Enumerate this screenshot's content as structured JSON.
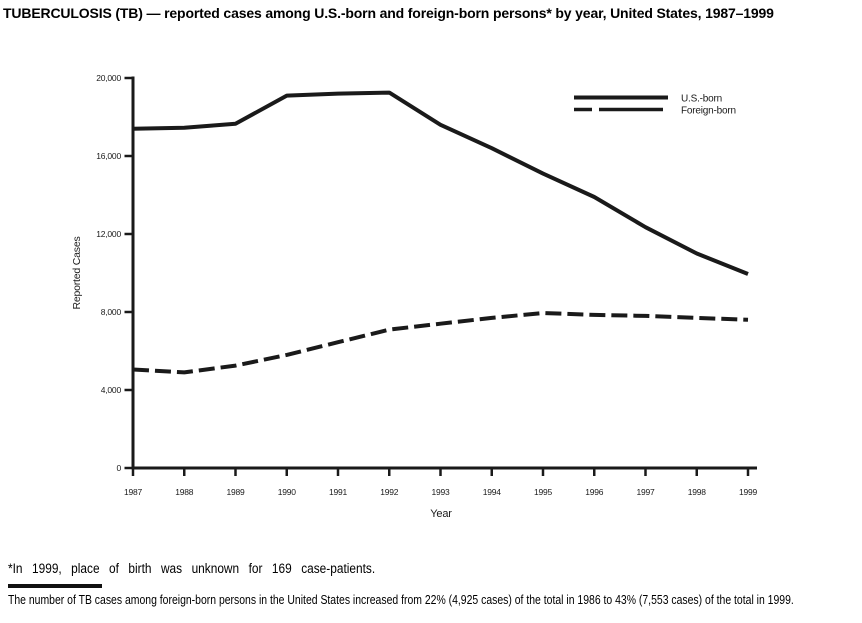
{
  "title": "TUBERCULOSIS (TB) — reported cases among U.S.-born and foreign-born persons* by year, United States, 1987–1999",
  "chart_data": {
    "type": "line",
    "x": [
      1987,
      1988,
      1989,
      1990,
      1991,
      1992,
      1993,
      1994,
      1995,
      1996,
      1997,
      1998,
      1999
    ],
    "series": [
      {
        "name": "U.S.-born",
        "style": "solid",
        "values": [
          17400,
          17450,
          17650,
          19100,
          19200,
          19250,
          17600,
          16400,
          15100,
          13900,
          12350,
          11000,
          9950
        ]
      },
      {
        "name": "Foreign-born",
        "style": "dashed",
        "values": [
          5050,
          4900,
          5250,
          5800,
          6450,
          7100,
          7400,
          7700,
          7950,
          7850,
          7800,
          7700,
          7600
        ]
      }
    ],
    "xlabel": "Year",
    "ylabel": "Reported Cases",
    "ylim": [
      0,
      20000
    ],
    "yticks": [
      0,
      4000,
      8000,
      12000,
      16000,
      20000
    ],
    "ytick_labels": [
      "0",
      "4,000",
      "8,000",
      "12,000",
      "16,000",
      "20,000"
    ],
    "grid": false,
    "legend_position": "top-right",
    "line_color": "#1a1a1a"
  },
  "footnotes": {
    "asterisk_note": "*In 1999, place of birth was unknown for 169 case-patients.",
    "bottom_note": "The number of TB cases among foreign-born persons in the United States increased from 22% (4,925 cases) of the total in 1986 to 43% (7,553 cases) of the total in 1999."
  }
}
